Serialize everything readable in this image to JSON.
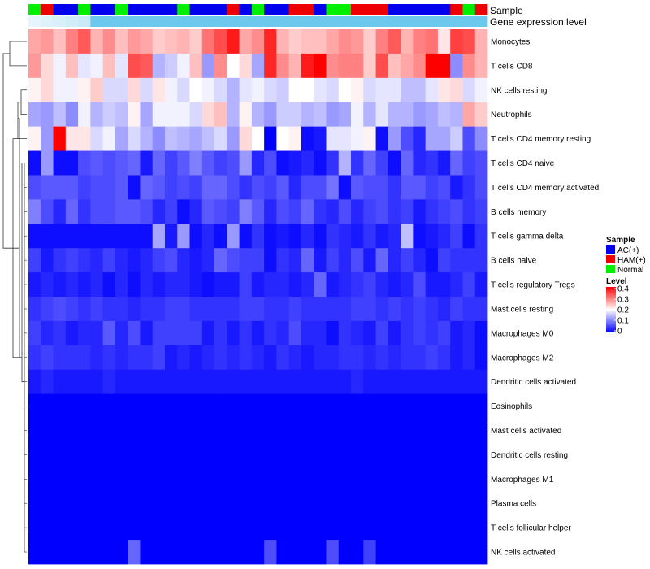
{
  "chart_data": {
    "type": "heatmap",
    "title": "",
    "annotation_tracks": [
      {
        "name": "Sample",
        "label": "Sample"
      },
      {
        "name": "Gene expression level",
        "label": "Gene expression level"
      }
    ],
    "sample_groups": [
      "N",
      "H",
      "A",
      "A",
      "N",
      "A",
      "A",
      "N",
      "A",
      "A",
      "A",
      "A",
      "N",
      "A",
      "A",
      "A",
      "H",
      "A",
      "N",
      "A",
      "A",
      "H",
      "H",
      "A",
      "N",
      "N",
      "H",
      "H",
      "H",
      "A",
      "A",
      "A",
      "A",
      "A",
      "H",
      "N",
      "H"
    ],
    "sample_legend": {
      "title": "Sample",
      "items": [
        {
          "key": "A",
          "label": "AC(+)",
          "color": "#0000ee"
        },
        {
          "key": "H",
          "label": "HAM(+)",
          "color": "#ee0000"
        },
        {
          "key": "N",
          "label": "Normal",
          "color": "#00ee00"
        }
      ]
    },
    "expression_track": {
      "color_from": "#e6f5fb",
      "color_to": "#6cc8ec",
      "light_count": 5
    },
    "value_legend": {
      "title": "Level",
      "ticks": [
        "0.4",
        "0.3",
        "0.2",
        "0.1",
        "0"
      ],
      "min": 0,
      "max": 0.4,
      "colors": {
        "low": "#0000ff",
        "mid": "#ffffff",
        "high": "#ff0000"
      }
    },
    "rows": [
      {
        "label": "Monocytes",
        "values": [
          0.27,
          0.28,
          0.25,
          0.3,
          0.33,
          0.26,
          0.29,
          0.25,
          0.28,
          0.27,
          0.24,
          0.25,
          0.26,
          0.24,
          0.31,
          0.34,
          0.38,
          0.27,
          0.29,
          0.37,
          0.26,
          0.24,
          0.25,
          0.25,
          0.27,
          0.29,
          0.28,
          0.24,
          0.3,
          0.33,
          0.26,
          0.3,
          0.31,
          0.22,
          0.35,
          0.34,
          0.26
        ]
      },
      {
        "label": "T cells CD8",
        "values": [
          0.28,
          0.23,
          0.19,
          0.25,
          0.18,
          0.19,
          0.25,
          0.18,
          0.34,
          0.33,
          0.14,
          0.16,
          0.19,
          0.25,
          0.12,
          0.29,
          0.2,
          0.23,
          0.13,
          0.37,
          0.29,
          0.26,
          0.38,
          0.4,
          0.29,
          0.3,
          0.3,
          0.24,
          0.34,
          0.25,
          0.27,
          0.29,
          0.4,
          0.4,
          0.11,
          0.29,
          0.26
        ]
      },
      {
        "label": "NK cells resting",
        "values": [
          0.21,
          0.23,
          0.19,
          0.19,
          0.21,
          0.24,
          0.17,
          0.17,
          0.23,
          0.17,
          0.22,
          0.19,
          0.17,
          0.2,
          0.19,
          0.17,
          0.14,
          0.18,
          0.19,
          0.17,
          0.16,
          0.2,
          0.2,
          0.18,
          0.17,
          0.2,
          0.21,
          0.17,
          0.18,
          0.18,
          0.15,
          0.15,
          0.18,
          0.22,
          0.23,
          0.17,
          0.19
        ]
      },
      {
        "label": "Neutrophils",
        "values": [
          0.13,
          0.12,
          0.15,
          0.11,
          0.19,
          0.14,
          0.16,
          0.15,
          0.21,
          0.13,
          0.19,
          0.19,
          0.19,
          0.17,
          0.23,
          0.25,
          0.14,
          0.21,
          0.14,
          0.12,
          0.16,
          0.16,
          0.14,
          0.15,
          0.12,
          0.13,
          0.19,
          0.14,
          0.18,
          0.14,
          0.14,
          0.12,
          0.13,
          0.15,
          0.14,
          0.27,
          0.24
        ]
      },
      {
        "label": "T cells CD4 memory resting",
        "values": [
          0.21,
          0.12,
          0.4,
          0.22,
          0.22,
          0.17,
          0.19,
          0.13,
          0.17,
          0.14,
          0.11,
          0.15,
          0.14,
          0.13,
          0.15,
          0.17,
          0.12,
          0.23,
          0.2,
          0.0,
          0.2,
          0.21,
          0.01,
          0.02,
          0.18,
          0.18,
          0.19,
          0.21,
          0.01,
          0.12,
          0.06,
          0.03,
          0.13,
          0.13,
          0.16,
          0.06,
          0.11
        ]
      },
      {
        "label": "T cells CD4 naive",
        "values": [
          0.01,
          0.12,
          0.01,
          0.01,
          0.06,
          0.07,
          0.06,
          0.07,
          0.08,
          0.02,
          0.08,
          0.05,
          0.07,
          0.1,
          0.07,
          0.05,
          0.06,
          0.12,
          0.03,
          0.06,
          0.01,
          0.02,
          0.03,
          0.01,
          0.04,
          0.14,
          0.04,
          0.08,
          0.05,
          0.01,
          0.08,
          0.03,
          0.04,
          0.02,
          0.08,
          0.05,
          0.06
        ]
      },
      {
        "label": "T cells CD4 memory activated",
        "values": [
          0.06,
          0.07,
          0.07,
          0.07,
          0.05,
          0.06,
          0.06,
          0.07,
          0.01,
          0.08,
          0.07,
          0.05,
          0.06,
          0.05,
          0.08,
          0.08,
          0.06,
          0.04,
          0.06,
          0.05,
          0.07,
          0.03,
          0.06,
          0.06,
          0.09,
          0.01,
          0.07,
          0.06,
          0.06,
          0.04,
          0.07,
          0.07,
          0.05,
          0.06,
          0.02,
          0.04,
          0.06
        ]
      },
      {
        "label": "B cells memory",
        "values": [
          0.1,
          0.06,
          0.03,
          0.08,
          0.04,
          0.06,
          0.06,
          0.07,
          0.07,
          0.06,
          0.03,
          0.05,
          0.01,
          0.03,
          0.07,
          0.06,
          0.05,
          0.1,
          0.07,
          0.03,
          0.06,
          0.05,
          0.08,
          0.04,
          0.03,
          0.06,
          0.03,
          0.05,
          0.06,
          0.04,
          0.05,
          0.02,
          0.04,
          0.05,
          0.06,
          0.04,
          0.05
        ]
      },
      {
        "label": "T cells gamma delta",
        "values": [
          0.01,
          0.01,
          0.01,
          0.01,
          0.01,
          0.01,
          0.01,
          0.01,
          0.01,
          0.01,
          0.13,
          0.02,
          0.12,
          0.01,
          0.03,
          0.01,
          0.12,
          0.01,
          0.04,
          0.01,
          0.02,
          0.01,
          0.03,
          0.01,
          0.04,
          0.03,
          0.02,
          0.04,
          0.02,
          0.03,
          0.15,
          0.01,
          0.02,
          0.03,
          0.05,
          0.01,
          0.04
        ]
      },
      {
        "label": "B cells naive",
        "values": [
          0.05,
          0.02,
          0.04,
          0.05,
          0.04,
          0.03,
          0.05,
          0.03,
          0.02,
          0.03,
          0.05,
          0.06,
          0.03,
          0.02,
          0.03,
          0.08,
          0.06,
          0.05,
          0.05,
          0.01,
          0.04,
          0.03,
          0.08,
          0.02,
          0.05,
          0.03,
          0.06,
          0.02,
          0.08,
          0.03,
          0.05,
          0.03,
          0.01,
          0.05,
          0.04,
          0.04,
          0.04
        ]
      },
      {
        "label": "T cells regulatory  Tregs",
        "values": [
          0.02,
          0.03,
          0.02,
          0.03,
          0.02,
          0.03,
          0.01,
          0.03,
          0.01,
          0.03,
          0.02,
          0.03,
          0.03,
          0.02,
          0.01,
          0.02,
          0.02,
          0.05,
          0.02,
          0.03,
          0.03,
          0.02,
          0.03,
          0.08,
          0.02,
          0.03,
          0.04,
          0.05,
          0.03,
          0.02,
          0.03,
          0.06,
          0.02,
          0.02,
          0.03,
          0.05,
          0.02
        ]
      },
      {
        "label": "Mast cells resting",
        "values": [
          0.04,
          0.05,
          0.06,
          0.05,
          0.04,
          0.05,
          0.04,
          0.04,
          0.03,
          0.04,
          0.04,
          0.05,
          0.05,
          0.04,
          0.04,
          0.04,
          0.04,
          0.05,
          0.05,
          0.04,
          0.04,
          0.05,
          0.04,
          0.04,
          0.04,
          0.04,
          0.05,
          0.05,
          0.04,
          0.05,
          0.04,
          0.05,
          0.04,
          0.03,
          0.05,
          0.04,
          0.04
        ]
      },
      {
        "label": "Macrophages M0",
        "values": [
          0.05,
          0.03,
          0.04,
          0.02,
          0.03,
          0.03,
          0.07,
          0.03,
          0.06,
          0.02,
          0.05,
          0.05,
          0.05,
          0.05,
          0.02,
          0.04,
          0.02,
          0.04,
          0.02,
          0.04,
          0.03,
          0.06,
          0.03,
          0.03,
          0.01,
          0.04,
          0.03,
          0.02,
          0.05,
          0.02,
          0.04,
          0.05,
          0.04,
          0.05,
          0.02,
          0.03,
          0.01
        ]
      },
      {
        "label": "Macrophages M2",
        "values": [
          0.04,
          0.05,
          0.04,
          0.04,
          0.04,
          0.03,
          0.04,
          0.03,
          0.04,
          0.04,
          0.05,
          0.02,
          0.03,
          0.02,
          0.03,
          0.04,
          0.03,
          0.04,
          0.03,
          0.02,
          0.04,
          0.03,
          0.02,
          0.03,
          0.03,
          0.04,
          0.04,
          0.03,
          0.04,
          0.03,
          0.04,
          0.04,
          0.05,
          0.04,
          0.02,
          0.03,
          0.01
        ]
      },
      {
        "label": "Dendritic cells activated",
        "values": [
          0.02,
          0.03,
          0.02,
          0.02,
          0.02,
          0.02,
          0.03,
          0.02,
          0.02,
          0.02,
          0.02,
          0.02,
          0.02,
          0.02,
          0.02,
          0.02,
          0.02,
          0.02,
          0.02,
          0.02,
          0.02,
          0.02,
          0.02,
          0.02,
          0.02,
          0.02,
          0.03,
          0.02,
          0.02,
          0.02,
          0.02,
          0.02,
          0.02,
          0.02,
          0.02,
          0.02,
          0.02
        ]
      },
      {
        "label": "Eosinophils",
        "values": [
          0,
          0,
          0,
          0,
          0,
          0,
          0,
          0,
          0,
          0,
          0,
          0,
          0,
          0,
          0,
          0,
          0,
          0,
          0,
          0,
          0,
          0,
          0,
          0,
          0,
          0,
          0,
          0,
          0,
          0,
          0,
          0,
          0,
          0,
          0,
          0,
          0
        ]
      },
      {
        "label": "Mast cells activated",
        "values": [
          0,
          0,
          0,
          0,
          0,
          0,
          0,
          0,
          0,
          0,
          0,
          0,
          0,
          0,
          0,
          0,
          0,
          0,
          0,
          0,
          0,
          0,
          0,
          0,
          0,
          0,
          0,
          0,
          0,
          0,
          0,
          0,
          0,
          0,
          0,
          0,
          0
        ]
      },
      {
        "label": "Dendritic cells resting",
        "values": [
          0,
          0,
          0,
          0,
          0,
          0,
          0,
          0,
          0,
          0,
          0,
          0,
          0,
          0,
          0,
          0,
          0,
          0,
          0,
          0,
          0,
          0,
          0,
          0,
          0,
          0,
          0,
          0,
          0,
          0,
          0,
          0,
          0,
          0,
          0,
          0,
          0
        ]
      },
      {
        "label": "Macrophages M1",
        "values": [
          0,
          0,
          0,
          0,
          0,
          0,
          0,
          0,
          0,
          0,
          0,
          0,
          0,
          0,
          0,
          0,
          0,
          0,
          0,
          0,
          0,
          0,
          0,
          0,
          0,
          0,
          0,
          0,
          0,
          0,
          0,
          0,
          0,
          0,
          0,
          0,
          0
        ]
      },
      {
        "label": "Plasma cells",
        "values": [
          0,
          0,
          0,
          0,
          0,
          0,
          0,
          0,
          0,
          0,
          0,
          0,
          0,
          0,
          0,
          0,
          0,
          0,
          0,
          0,
          0,
          0,
          0,
          0,
          0,
          0,
          0,
          0,
          0,
          0,
          0,
          0,
          0,
          0,
          0,
          0,
          0
        ]
      },
      {
        "label": "T cells follicular helper",
        "values": [
          0,
          0,
          0,
          0,
          0,
          0,
          0,
          0,
          0,
          0,
          0,
          0,
          0,
          0,
          0,
          0,
          0,
          0,
          0,
          0,
          0,
          0,
          0,
          0,
          0,
          0,
          0,
          0,
          0,
          0,
          0,
          0,
          0,
          0,
          0,
          0,
          0
        ]
      },
      {
        "label": "NK cells activated",
        "values": [
          0,
          0,
          0,
          0,
          0,
          0,
          0,
          0,
          0.08,
          0,
          0,
          0,
          0,
          0,
          0,
          0,
          0,
          0,
          0,
          0.06,
          0,
          0,
          0,
          0,
          0.06,
          0,
          0,
          0.05,
          0,
          0,
          0,
          0,
          0,
          0,
          0,
          0,
          0
        ]
      }
    ]
  }
}
